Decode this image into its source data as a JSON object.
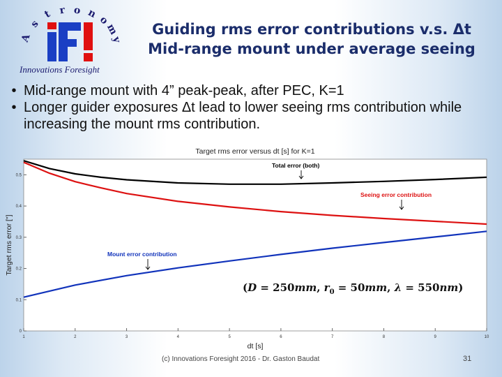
{
  "logo": {
    "arc_letters": [
      "A",
      "s",
      "t",
      "r",
      "o",
      "n",
      "o",
      "m",
      "y"
    ],
    "mark": "iFI",
    "caption": "Innovations Foresight"
  },
  "slide": {
    "title_line1": "Guiding rms error contributions v.s. Δt",
    "title_line2": "Mid-range mount under average seeing",
    "bullets": [
      "Mid-range mount with 4” peak-peak, after PEC, K=1",
      "Longer guider exposures Δt lead to lower seeing rms contribution while increasing the mount rms contribution."
    ],
    "footer": "(c) Innovations Foresight 2016 - Dr. Gaston Baudat",
    "page_number": "31"
  },
  "colors": {
    "title": "#1b2d6b",
    "total": "#000000",
    "seeing": "#dd1111",
    "mount": "#1133bb",
    "seeing_label": "#dd1111",
    "mount_label": "#1133bb"
  },
  "chart_data": {
    "type": "line",
    "title": "Target rms error versus dt [s] for K=1",
    "xlabel": "dt [s]",
    "ylabel": "Target rms error [\"]",
    "xlim": [
      1,
      10
    ],
    "ylim": [
      0,
      0.55
    ],
    "x_ticks": [
      1,
      2,
      3,
      4,
      5,
      6,
      7,
      8,
      9,
      10
    ],
    "y_ticks": [
      0,
      0.1,
      0.2,
      0.3,
      0.4,
      0.5
    ],
    "series": [
      {
        "name": "Total error (both)",
        "x": [
          1,
          1.5,
          2,
          2.5,
          3,
          4,
          5,
          6,
          7,
          8,
          9,
          10
        ],
        "y": [
          0.545,
          0.52,
          0.503,
          0.492,
          0.484,
          0.474,
          0.47,
          0.47,
          0.474,
          0.479,
          0.485,
          0.492
        ]
      },
      {
        "name": "Seeing error contribution",
        "x": [
          1,
          1.5,
          2,
          2.5,
          3,
          4,
          5,
          6,
          7,
          8,
          9,
          10
        ],
        "y": [
          0.54,
          0.505,
          0.478,
          0.458,
          0.44,
          0.415,
          0.397,
          0.382,
          0.37,
          0.36,
          0.351,
          0.342
        ]
      },
      {
        "name": "Mount error contribution",
        "x": [
          1,
          2,
          3,
          4,
          5,
          6,
          7,
          8,
          9,
          10
        ],
        "y": [
          0.108,
          0.147,
          0.177,
          0.202,
          0.224,
          0.245,
          0.265,
          0.283,
          0.301,
          0.319
        ]
      }
    ],
    "annotations": {
      "total": "Total error (both)",
      "seeing": "Seeing error contribution",
      "mount": "Mount error contribution",
      "params_open": "(",
      "D_label": "D",
      "eq1": " = 250",
      "mm1": "mm",
      "comma1": ", ",
      "r_label": "r",
      "r_sub": "0",
      "eq2": " = 50",
      "mm2": "mm",
      "comma2": ", ",
      "lambda": "λ",
      "eq3": " = 550",
      "nm": "nm",
      "params_close": ")"
    }
  }
}
